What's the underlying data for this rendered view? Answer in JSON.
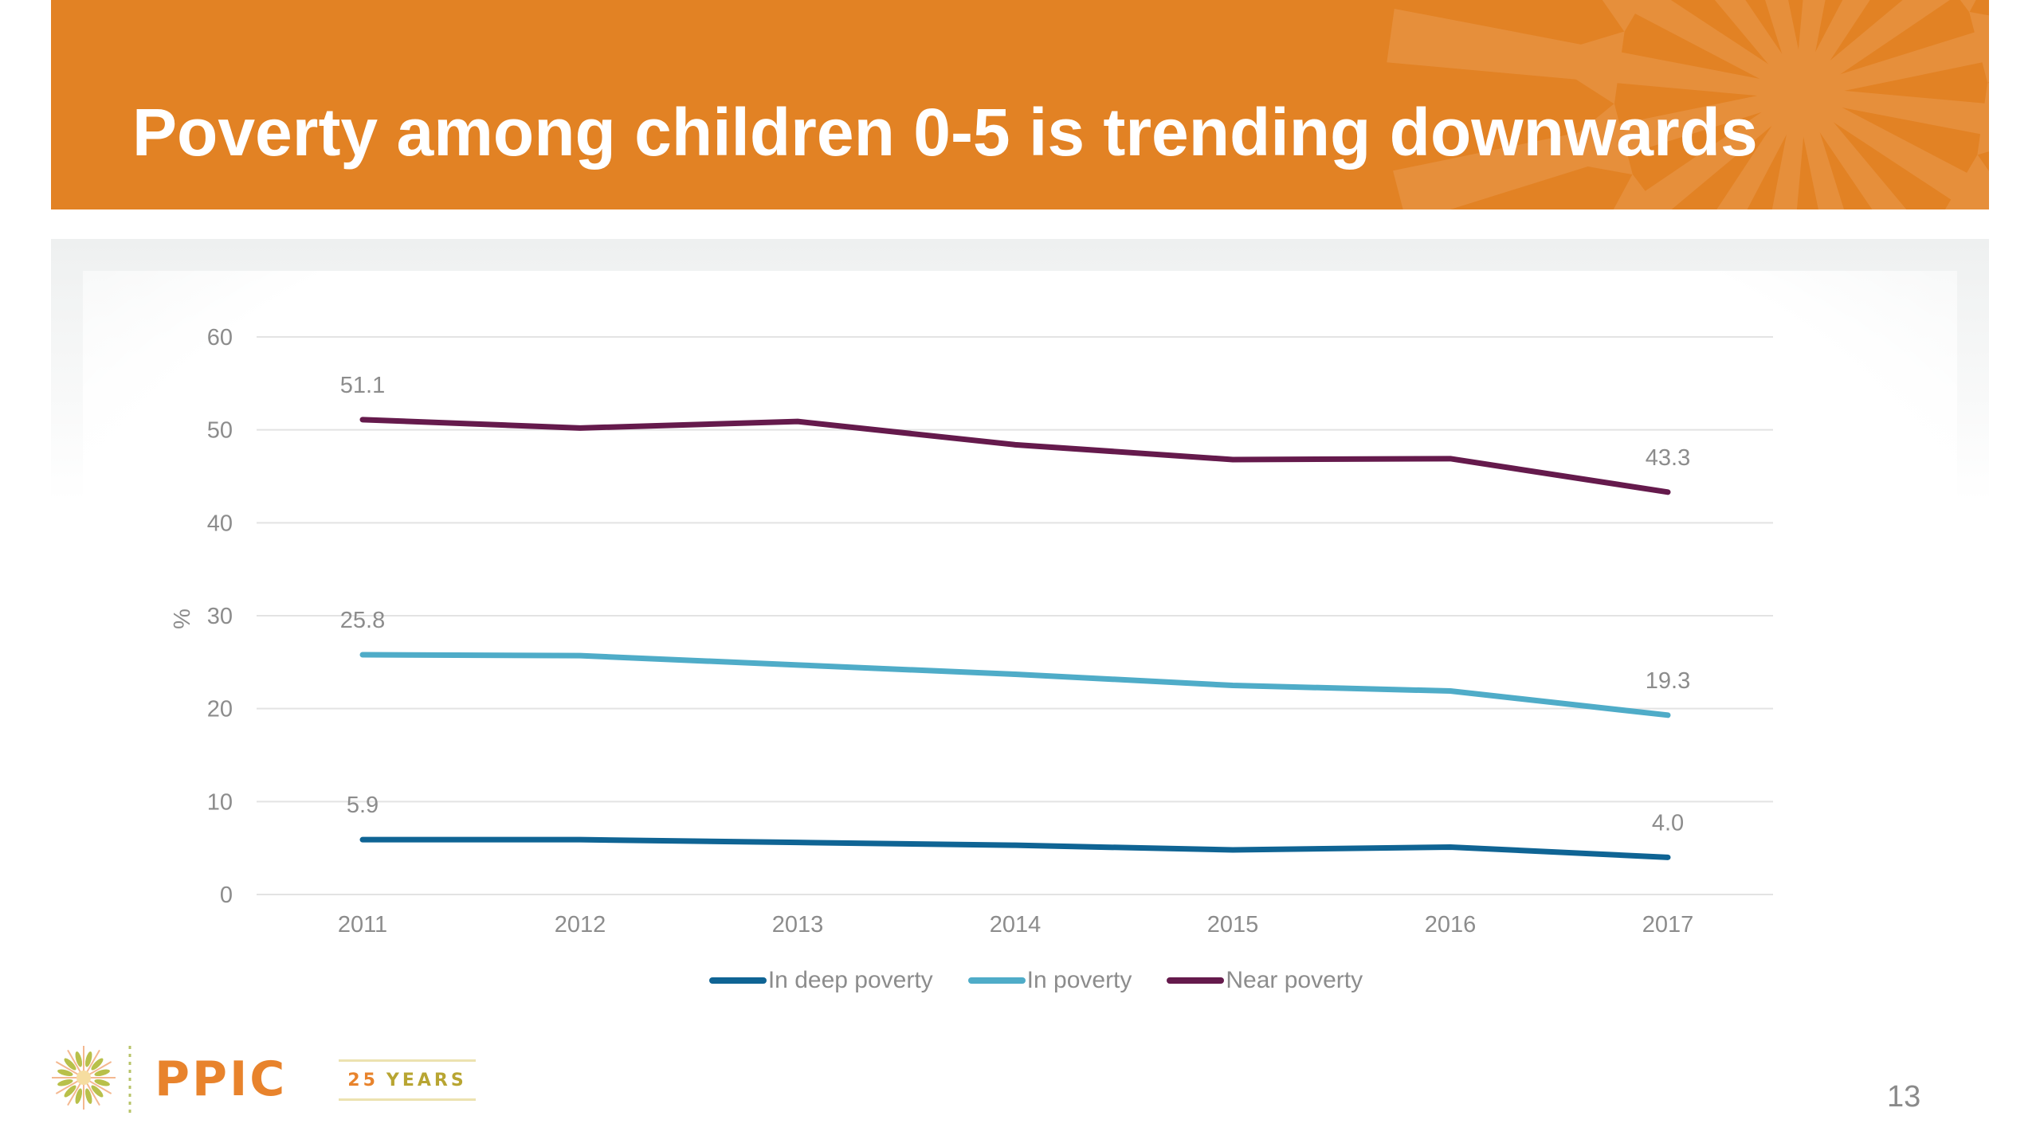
{
  "slide": {
    "title": "Poverty among children 0-5 is trending downwards",
    "page_number": "13",
    "brand_color": "#E28224"
  },
  "footer": {
    "logo_text": "PPIC",
    "anniversary_number": "25",
    "anniversary_word": "YEARS"
  },
  "chart_data": {
    "type": "line",
    "title": "",
    "xlabel": "",
    "ylabel": "%",
    "x": [
      "2011",
      "2012",
      "2013",
      "2014",
      "2015",
      "2016",
      "2017"
    ],
    "ylim": [
      0,
      60
    ],
    "yticks": [
      "0",
      "10",
      "20",
      "30",
      "40",
      "50",
      "60"
    ],
    "grid": true,
    "legend_position": "bottom",
    "series": [
      {
        "name": "In deep poverty",
        "color": "#0F6494",
        "values": [
          5.9,
          5.9,
          5.6,
          5.3,
          4.8,
          5.1,
          4.0
        ],
        "labels": {
          "first": "5.9",
          "last": "4.0"
        }
      },
      {
        "name": "In poverty",
        "color": "#4FACC8",
        "values": [
          25.8,
          25.7,
          24.7,
          23.7,
          22.5,
          21.9,
          19.3
        ],
        "labels": {
          "first": "25.8",
          "last": "19.3"
        }
      },
      {
        "name": "Near poverty",
        "color": "#651A4C",
        "values": [
          51.1,
          50.2,
          50.9,
          48.4,
          46.8,
          46.9,
          43.3
        ],
        "labels": {
          "first": "51.1",
          "last": "43.3"
        }
      }
    ]
  }
}
